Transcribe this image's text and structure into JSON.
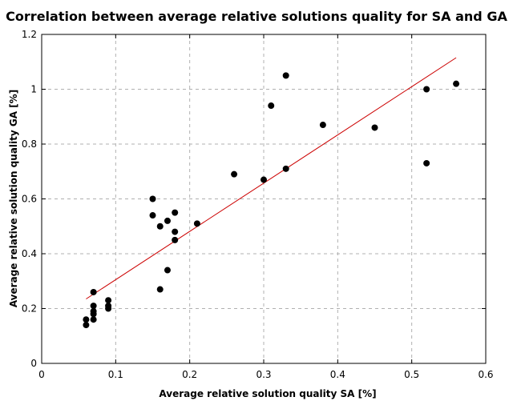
{
  "chart_data": {
    "type": "scatter",
    "title": "Correlation between average relative solutions quality for SA and GA",
    "xlabel": "Average relative solution quality SA [%]",
    "ylabel": "Average relative solution quality GA [%]",
    "xlim": [
      0,
      0.6
    ],
    "ylim": [
      0,
      1.2
    ],
    "x_ticks": [
      0,
      0.1,
      0.2,
      0.3,
      0.4,
      0.5,
      0.6
    ],
    "x_tick_labels": [
      "0",
      "0.1",
      "0.2",
      "0.3",
      "0.4",
      "0.5",
      "0.6"
    ],
    "y_ticks": [
      0,
      0.2,
      0.4,
      0.6,
      0.8,
      1.0,
      1.2
    ],
    "y_tick_labels": [
      "0",
      "0.2",
      "0.4",
      "0.6",
      "0.8",
      "1",
      "1.2"
    ],
    "grid": true,
    "legend": false,
    "series": [
      {
        "kind": "points",
        "color": "#000000",
        "x": [
          0.06,
          0.06,
          0.07,
          0.07,
          0.07,
          0.07,
          0.07,
          0.09,
          0.09,
          0.09,
          0.15,
          0.15,
          0.16,
          0.16,
          0.17,
          0.17,
          0.18,
          0.18,
          0.18,
          0.21,
          0.26,
          0.3,
          0.31,
          0.33,
          0.33,
          0.38,
          0.45,
          0.52,
          0.52,
          0.56
        ],
        "y": [
          0.14,
          0.16,
          0.16,
          0.18,
          0.19,
          0.21,
          0.26,
          0.2,
          0.21,
          0.23,
          0.54,
          0.6,
          0.27,
          0.5,
          0.34,
          0.52,
          0.45,
          0.48,
          0.55,
          0.51,
          0.69,
          0.67,
          0.94,
          0.71,
          1.05,
          0.87,
          0.86,
          0.73,
          1.0,
          1.02
        ]
      },
      {
        "kind": "trend-line",
        "color": "#cc0000",
        "x": [
          0.06,
          0.56
        ],
        "y": [
          0.235,
          1.115
        ]
      }
    ]
  }
}
